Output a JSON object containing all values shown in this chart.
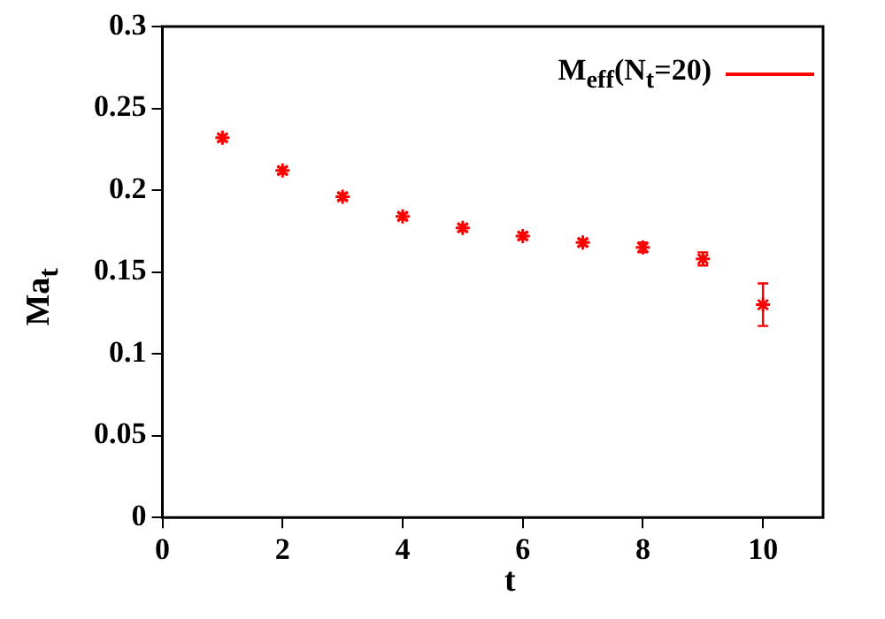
{
  "chart_data": {
    "type": "scatter",
    "xlabel": "t",
    "ylabel": "Ma$_{t}$",
    "x": [
      1,
      2,
      3,
      4,
      5,
      6,
      7,
      8,
      9,
      10
    ],
    "series": [
      {
        "name": "M$_{eff}$(N$_{t}$=20)",
        "color": "#ff0000",
        "values": [
          0.232,
          0.212,
          0.196,
          0.184,
          0.177,
          0.172,
          0.168,
          0.165,
          0.158,
          0.13
        ],
        "errors": [
          0.002,
          0.002,
          0.002,
          0.002,
          0.002,
          0.002,
          0.002,
          0.003,
          0.004,
          0.013
        ]
      }
    ],
    "xlim": [
      0,
      11
    ],
    "xticks": [
      0,
      2,
      4,
      6,
      8,
      10
    ],
    "ylim": [
      0,
      0.3
    ],
    "yticks": [
      0,
      0.05,
      0.1,
      0.15,
      0.2,
      0.25,
      0.3
    ],
    "grid": false,
    "legend": "top right",
    "marker": "cross"
  }
}
